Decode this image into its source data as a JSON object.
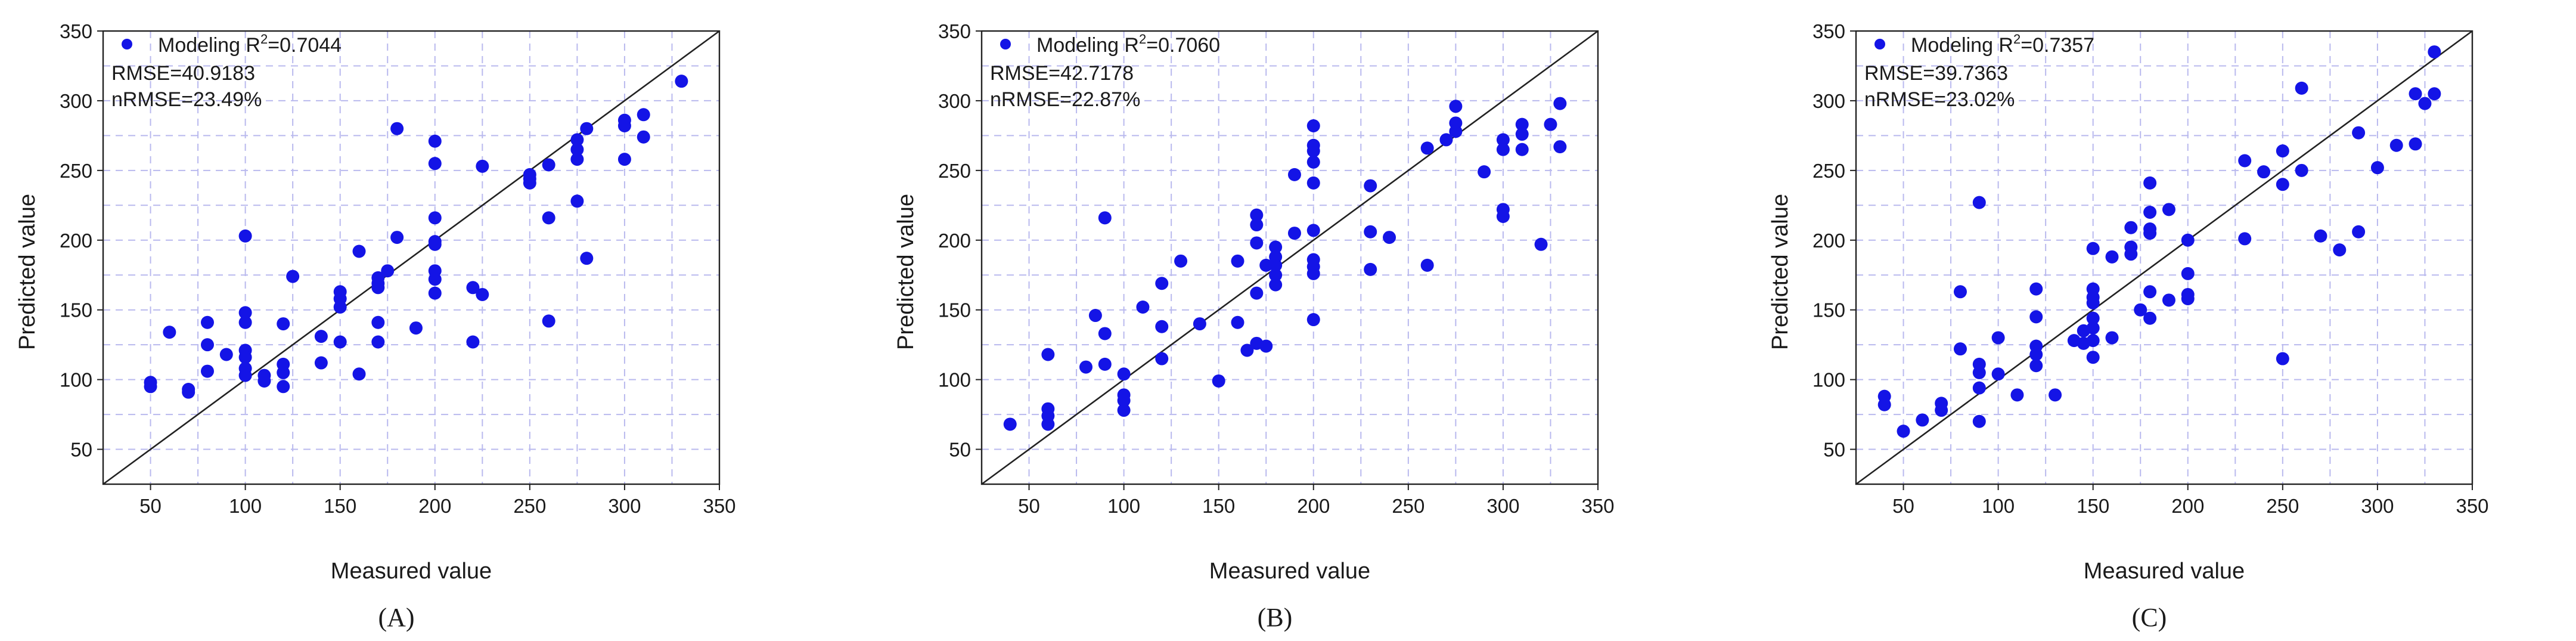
{
  "figure": {
    "panel_labels": [
      "(A)",
      "(B)",
      "(C)"
    ]
  },
  "chart_data": [
    {
      "type": "scatter",
      "panel": "(A)",
      "xlabel": "Measured value",
      "ylabel": "Predicted value",
      "xlim": [
        25,
        350
      ],
      "ylim": [
        25,
        350
      ],
      "x_ticks": [
        50,
        100,
        150,
        200,
        250,
        300,
        350
      ],
      "y_ticks": [
        50,
        100,
        150,
        200,
        250,
        300,
        350
      ],
      "grid": true,
      "reference_line": "1:1",
      "marker_color": "#1414e6",
      "legend": {
        "position": "top-left",
        "label": "Modeling R",
        "sup": "2",
        "value": "=0.7044"
      },
      "stats": [
        "RMSE=40.9183",
        "nRMSE=23.49%"
      ],
      "points": [
        [
          50,
          95
        ],
        [
          50,
          98
        ],
        [
          60,
          134
        ],
        [
          70,
          91
        ],
        [
          70,
          93
        ],
        [
          80,
          106
        ],
        [
          80,
          125
        ],
        [
          80,
          141
        ],
        [
          90,
          118
        ],
        [
          100,
          203
        ],
        [
          100,
          148
        ],
        [
          100,
          141
        ],
        [
          100,
          121
        ],
        [
          100,
          116
        ],
        [
          100,
          108
        ],
        [
          100,
          103
        ],
        [
          110,
          99
        ],
        [
          110,
          103
        ],
        [
          120,
          95
        ],
        [
          120,
          105
        ],
        [
          120,
          111
        ],
        [
          120,
          140
        ],
        [
          125,
          174
        ],
        [
          140,
          112
        ],
        [
          140,
          131
        ],
        [
          150,
          163
        ],
        [
          150,
          158
        ],
        [
          150,
          152
        ],
        [
          150,
          127
        ],
        [
          160,
          104
        ],
        [
          160,
          192
        ],
        [
          170,
          166
        ],
        [
          170,
          169
        ],
        [
          170,
          173
        ],
        [
          170,
          141
        ],
        [
          170,
          127
        ],
        [
          175,
          178
        ],
        [
          180,
          280
        ],
        [
          180,
          202
        ],
        [
          190,
          137
        ],
        [
          200,
          271
        ],
        [
          200,
          255
        ],
        [
          200,
          216
        ],
        [
          200,
          199
        ],
        [
          200,
          197
        ],
        [
          200,
          178
        ],
        [
          200,
          172
        ],
        [
          200,
          162
        ],
        [
          220,
          166
        ],
        [
          220,
          127
        ],
        [
          225,
          161
        ],
        [
          225,
          253
        ],
        [
          250,
          247
        ],
        [
          250,
          244
        ],
        [
          250,
          241
        ],
        [
          260,
          254
        ],
        [
          260,
          216
        ],
        [
          260,
          142
        ],
        [
          275,
          272
        ],
        [
          275,
          265
        ],
        [
          275,
          258
        ],
        [
          275,
          228
        ],
        [
          280,
          280
        ],
        [
          280,
          187
        ],
        [
          300,
          286
        ],
        [
          300,
          282
        ],
        [
          300,
          258
        ],
        [
          310,
          290
        ],
        [
          310,
          274
        ],
        [
          330,
          314
        ]
      ]
    },
    {
      "type": "scatter",
      "panel": "(B)",
      "xlabel": "Measured value",
      "ylabel": "Predicted value",
      "xlim": [
        25,
        350
      ],
      "ylim": [
        25,
        350
      ],
      "x_ticks": [
        50,
        100,
        150,
        200,
        250,
        300,
        350
      ],
      "y_ticks": [
        50,
        100,
        150,
        200,
        250,
        300,
        350
      ],
      "grid": true,
      "reference_line": "1:1",
      "marker_color": "#1414e6",
      "legend": {
        "position": "top-left",
        "label": "Modeling R",
        "sup": "2",
        "value": "=0.7060"
      },
      "stats": [
        "RMSE=42.7178",
        "nRMSE=22.87%"
      ],
      "points": [
        [
          40,
          68
        ],
        [
          60,
          79
        ],
        [
          60,
          74
        ],
        [
          60,
          68
        ],
        [
          60,
          118
        ],
        [
          80,
          109
        ],
        [
          85,
          146
        ],
        [
          90,
          216
        ],
        [
          90,
          111
        ],
        [
          90,
          133
        ],
        [
          100,
          104
        ],
        [
          100,
          89
        ],
        [
          100,
          85
        ],
        [
          100,
          78
        ],
        [
          110,
          152
        ],
        [
          120,
          169
        ],
        [
          120,
          138
        ],
        [
          120,
          115
        ],
        [
          130,
          185
        ],
        [
          140,
          140
        ],
        [
          150,
          99
        ],
        [
          160,
          141
        ],
        [
          160,
          185
        ],
        [
          165,
          121
        ],
        [
          170,
          218
        ],
        [
          170,
          211
        ],
        [
          170,
          198
        ],
        [
          170,
          162
        ],
        [
          170,
          126
        ],
        [
          175,
          182
        ],
        [
          175,
          124
        ],
        [
          180,
          195
        ],
        [
          180,
          188
        ],
        [
          180,
          182
        ],
        [
          180,
          175
        ],
        [
          180,
          168
        ],
        [
          190,
          247
        ],
        [
          190,
          205
        ],
        [
          200,
          282
        ],
        [
          200,
          268
        ],
        [
          200,
          264
        ],
        [
          200,
          256
        ],
        [
          200,
          241
        ],
        [
          200,
          207
        ],
        [
          200,
          186
        ],
        [
          200,
          181
        ],
        [
          200,
          176
        ],
        [
          200,
          143
        ],
        [
          230,
          239
        ],
        [
          230,
          206
        ],
        [
          230,
          179
        ],
        [
          240,
          202
        ],
        [
          260,
          266
        ],
        [
          260,
          182
        ],
        [
          270,
          272
        ],
        [
          275,
          296
        ],
        [
          275,
          284
        ],
        [
          275,
          278
        ],
        [
          290,
          249
        ],
        [
          300,
          272
        ],
        [
          300,
          265
        ],
        [
          300,
          222
        ],
        [
          300,
          217
        ],
        [
          310,
          283
        ],
        [
          310,
          276
        ],
        [
          310,
          265
        ],
        [
          320,
          197
        ],
        [
          325,
          283
        ],
        [
          330,
          298
        ],
        [
          330,
          267
        ]
      ]
    },
    {
      "type": "scatter",
      "panel": "(C)",
      "xlabel": "Measured value",
      "ylabel": "Predicted value",
      "xlim": [
        25,
        350
      ],
      "ylim": [
        25,
        350
      ],
      "x_ticks": [
        50,
        100,
        150,
        200,
        250,
        300,
        350
      ],
      "y_ticks": [
        50,
        100,
        150,
        200,
        250,
        300,
        350
      ],
      "grid": true,
      "reference_line": "1:1",
      "marker_color": "#1414e6",
      "legend": {
        "position": "top-left",
        "label": "Modeling R",
        "sup": "2",
        "value": "=0.7357"
      },
      "stats": [
        "RMSE=39.7363",
        "nRMSE=23.02%"
      ],
      "points": [
        [
          40,
          88
        ],
        [
          40,
          82
        ],
        [
          50,
          63
        ],
        [
          60,
          71
        ],
        [
          70,
          78
        ],
        [
          70,
          83
        ],
        [
          80,
          163
        ],
        [
          80,
          122
        ],
        [
          90,
          227
        ],
        [
          90,
          111
        ],
        [
          90,
          105
        ],
        [
          90,
          94
        ],
        [
          90,
          70
        ],
        [
          100,
          130
        ],
        [
          100,
          104
        ],
        [
          110,
          89
        ],
        [
          120,
          165
        ],
        [
          120,
          145
        ],
        [
          120,
          124
        ],
        [
          120,
          118
        ],
        [
          120,
          110
        ],
        [
          130,
          89
        ],
        [
          140,
          128
        ],
        [
          145,
          126
        ],
        [
          145,
          135
        ],
        [
          150,
          194
        ],
        [
          150,
          165
        ],
        [
          150,
          159
        ],
        [
          150,
          155
        ],
        [
          150,
          144
        ],
        [
          150,
          137
        ],
        [
          150,
          128
        ],
        [
          150,
          116
        ],
        [
          160,
          188
        ],
        [
          160,
          130
        ],
        [
          170,
          209
        ],
        [
          170,
          195
        ],
        [
          170,
          190
        ],
        [
          175,
          150
        ],
        [
          180,
          241
        ],
        [
          180,
          220
        ],
        [
          180,
          208
        ],
        [
          180,
          205
        ],
        [
          180,
          163
        ],
        [
          180,
          144
        ],
        [
          190,
          222
        ],
        [
          190,
          157
        ],
        [
          200,
          200
        ],
        [
          200,
          176
        ],
        [
          200,
          161
        ],
        [
          200,
          158
        ],
        [
          230,
          257
        ],
        [
          230,
          201
        ],
        [
          240,
          249
        ],
        [
          250,
          264
        ],
        [
          250,
          240
        ],
        [
          250,
          115
        ],
        [
          260,
          309
        ],
        [
          260,
          250
        ],
        [
          270,
          203
        ],
        [
          280,
          193
        ],
        [
          290,
          277
        ],
        [
          290,
          206
        ],
        [
          300,
          252
        ],
        [
          310,
          268
        ],
        [
          320,
          305
        ],
        [
          320,
          269
        ],
        [
          325,
          298
        ],
        [
          330,
          335
        ],
        [
          330,
          305
        ]
      ]
    }
  ]
}
